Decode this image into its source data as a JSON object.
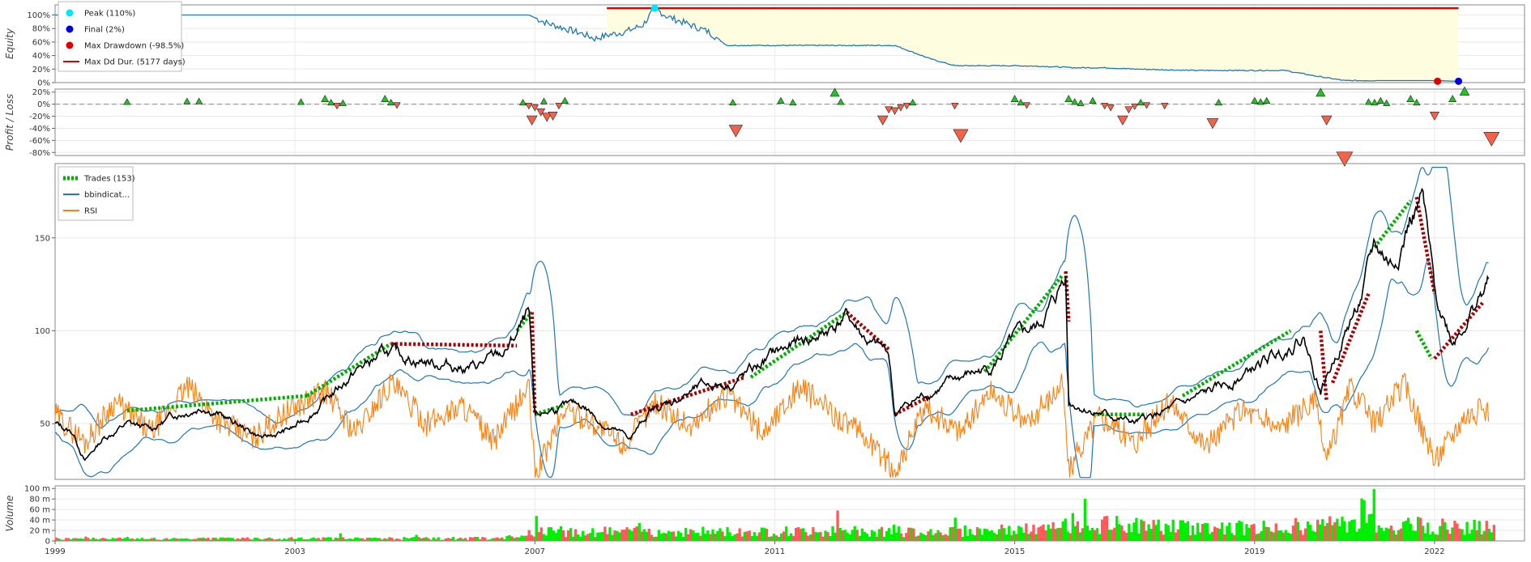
{
  "colors": {
    "equity": "#1f77b4",
    "equity_fill": "#fffde0",
    "peak": "#00e5ff",
    "final": "#0000dd",
    "maxdd": "#e00000",
    "ddline": "#e00000",
    "win": "#22c422",
    "loss": "#f2634a",
    "price": "#000000",
    "bb": "#1f77b4",
    "rsi": "#ff7f0e",
    "trade_win": "#00b000",
    "trade_loss": "#aa0000",
    "vol_up": "#00ee00",
    "vol_down": "#ff5a5a"
  },
  "chart_data": [
    {
      "type": "line",
      "panel": "equity",
      "ylabel": "Equity",
      "ylim": [
        0,
        115
      ],
      "yticks": [
        "0%",
        "20%",
        "40%",
        "60%",
        "80%",
        "100%"
      ],
      "ytick_values": [
        0,
        20,
        40,
        60,
        80,
        100
      ],
      "legend": [
        {
          "label": "Peak (110%)",
          "marker": "circle",
          "color": "peak"
        },
        {
          "label": "Final (2%)",
          "marker": "circle",
          "color": "final"
        },
        {
          "label": "Max Drawdown (-98.5%)",
          "marker": "circle",
          "color": "maxdd"
        },
        {
          "label": "Max Dd Dur. (5177 days)",
          "marker": "line",
          "color": "ddline"
        }
      ],
      "series": [
        {
          "x": [
            1999.0,
            2006.9,
            2007.2,
            2007.5,
            2007.8,
            2008.0,
            2008.2,
            2008.5,
            2008.8,
            2009.0,
            2009.2,
            2009.6,
            2009.9,
            2010.2,
            2010.5,
            2011.0,
            2011.5,
            2012.0,
            2012.5,
            2013.0,
            2013.3,
            2013.6,
            2014.0,
            2015.0,
            2015.5,
            2016.0,
            2016.5,
            2017.0,
            2018.0,
            2019.5,
            2020.0,
            2020.5,
            2021.5,
            2022.0,
            2022.4
          ],
          "y": [
            100,
            100,
            88,
            80,
            72,
            65,
            70,
            75,
            85,
            110,
            98,
            85,
            75,
            55,
            55,
            55,
            55,
            55,
            55,
            55,
            45,
            35,
            25,
            25,
            24,
            22,
            22,
            20,
            18,
            18,
            10,
            3,
            3,
            3,
            2
          ]
        }
      ],
      "peak": {
        "x": 2009.0,
        "y": 110
      },
      "final": {
        "x": 2022.4,
        "y": 2
      },
      "max_drawdown": {
        "x": 2022.05,
        "y": 2
      },
      "max_dd_duration": {
        "from": 2008.2,
        "to": 2022.4,
        "y": 110
      }
    },
    {
      "type": "scatter",
      "panel": "profit_loss",
      "ylabel": "Profit / Loss",
      "ylim": [
        -85,
        25
      ],
      "yticks": [
        "-80%",
        "-60%",
        "-40%",
        "-20%",
        "0%",
        "20%"
      ],
      "ytick_values": [
        -80,
        -60,
        -40,
        -20,
        0,
        20
      ],
      "points": [
        [
          2000.2,
          3
        ],
        [
          2001.2,
          4
        ],
        [
          2001.4,
          4
        ],
        [
          2003.1,
          3
        ],
        [
          2003.5,
          8
        ],
        [
          2003.6,
          2
        ],
        [
          2003.7,
          -2
        ],
        [
          2003.8,
          1
        ],
        [
          2004.5,
          8
        ],
        [
          2004.6,
          2
        ],
        [
          2004.7,
          -1
        ],
        [
          2006.8,
          2
        ],
        [
          2006.9,
          -2
        ],
        [
          2007.0,
          -5
        ],
        [
          2007.1,
          -12
        ],
        [
          2007.2,
          -20
        ],
        [
          2007.3,
          -18
        ],
        [
          2007.4,
          -2
        ],
        [
          2007.5,
          5
        ],
        [
          2006.95,
          -25
        ],
        [
          2007.15,
          4
        ],
        [
          2010.3,
          2
        ],
        [
          2010.35,
          -42
        ],
        [
          2011.1,
          5
        ],
        [
          2011.3,
          2
        ],
        [
          2012.0,
          18
        ],
        [
          2012.1,
          3
        ],
        [
          2012.8,
          -25
        ],
        [
          2012.9,
          -8
        ],
        [
          2013.0,
          -10
        ],
        [
          2013.1,
          -5
        ],
        [
          2013.2,
          -2
        ],
        [
          2013.3,
          2
        ],
        [
          2014.0,
          -2
        ],
        [
          2014.1,
          -50
        ],
        [
          2015.0,
          8
        ],
        [
          2015.1,
          2
        ],
        [
          2015.2,
          -1
        ],
        [
          2015.9,
          8
        ],
        [
          2016.0,
          3
        ],
        [
          2016.1,
          1
        ],
        [
          2016.3,
          5
        ],
        [
          2016.5,
          -2
        ],
        [
          2016.6,
          -5
        ],
        [
          2016.8,
          -25
        ],
        [
          2016.9,
          -8
        ],
        [
          2017.0,
          -3
        ],
        [
          2017.1,
          2
        ],
        [
          2017.2,
          -1
        ],
        [
          2017.5,
          -2
        ],
        [
          2018.3,
          -30
        ],
        [
          2018.4,
          2
        ],
        [
          2019.0,
          5
        ],
        [
          2019.1,
          3
        ],
        [
          2019.2,
          5
        ],
        [
          2020.1,
          18
        ],
        [
          2020.2,
          -25
        ],
        [
          2020.5,
          -88
        ],
        [
          2020.9,
          3
        ],
        [
          2021.0,
          2
        ],
        [
          2021.1,
          5
        ],
        [
          2021.2,
          1
        ],
        [
          2021.6,
          8
        ],
        [
          2021.7,
          2
        ],
        [
          2022.0,
          -18
        ],
        [
          2022.3,
          8
        ],
        [
          2022.5,
          20
        ],
        [
          2022.95,
          -55
        ]
      ]
    },
    {
      "type": "line",
      "panel": "price",
      "ylim": [
        20,
        190
      ],
      "yticks": [
        "50",
        "100",
        "150"
      ],
      "ytick_values": [
        50,
        100,
        150
      ],
      "legend": [
        {
          "label": "Trades (153)",
          "marker": "dashed",
          "color": "trade_win"
        },
        {
          "label": "bbindicat...",
          "marker": "line",
          "color": "bb"
        },
        {
          "label": "RSI",
          "marker": "line",
          "color": "rsi"
        }
      ],
      "price_anchors": {
        "x": [
          1999.0,
          1999.3,
          1999.5,
          1999.8,
          2000.2,
          2000.6,
          2001.0,
          2001.5,
          2002.0,
          2002.5,
          2003.0,
          2003.5,
          2004.0,
          2004.5,
          2005.0,
          2005.5,
          2006.0,
          2006.5,
          2006.9,
          2007.0,
          2007.3,
          2007.8,
          2008.2,
          2008.6,
          2008.9,
          2009.3,
          2009.8,
          2010.3,
          2010.7,
          2011.0,
          2011.4,
          2011.8,
          2012.2,
          2012.6,
          2012.9,
          2013.0,
          2013.3,
          2013.8,
          2014.2,
          2014.6,
          2015.0,
          2015.4,
          2015.7,
          2015.85,
          2015.9,
          2016.2,
          2016.6,
          2017.0,
          2017.4,
          2017.8,
          2018.2,
          2018.6,
          2019.0,
          2019.4,
          2019.8,
          2020.1,
          2020.2,
          2020.5,
          2020.8,
          2021.0,
          2021.3,
          2021.6,
          2021.8,
          2022.0,
          2022.3,
          2022.6,
          2022.9
        ],
        "y": [
          50,
          45,
          30,
          42,
          50,
          47,
          55,
          60,
          50,
          42,
          48,
          62,
          78,
          88,
          85,
          82,
          80,
          88,
          108,
          52,
          58,
          60,
          48,
          42,
          56,
          62,
          70,
          72,
          80,
          88,
          93,
          98,
          108,
          92,
          88,
          55,
          62,
          70,
          76,
          80,
          95,
          102,
          118,
          132,
          62,
          58,
          54,
          50,
          55,
          60,
          66,
          72,
          80,
          88,
          98,
          68,
          75,
          98,
          120,
          145,
          135,
          160,
          170,
          120,
          95,
          110,
          125
        ]
      },
      "rsi_anchors": {
        "x": [
          1999.0,
          1999.5,
          2000.0,
          2000.6,
          2001.2,
          2001.8,
          2002.3,
          2002.8,
          2003.5,
          2004.0,
          2004.6,
          2005.2,
          2005.8,
          2006.3,
          2006.9,
          2007.0,
          2007.5,
          2008.0,
          2008.5,
          2009.0,
          2009.6,
          2010.2,
          2010.8,
          2011.4,
          2012.0,
          2012.6,
          2013.0,
          2013.5,
          2014.1,
          2014.6,
          2015.2,
          2015.8,
          2015.9,
          2016.4,
          2017.0,
          2017.6,
          2018.2,
          2018.8,
          2019.4,
          2020.0,
          2020.2,
          2020.6,
          2021.0,
          2021.5,
          2022.0,
          2022.5,
          2022.9
        ],
        "y": [
          55,
          40,
          62,
          45,
          70,
          50,
          42,
          55,
          68,
          45,
          72,
          50,
          60,
          40,
          70,
          22,
          58,
          50,
          38,
          62,
          48,
          66,
          45,
          70,
          55,
          40,
          24,
          58,
          46,
          68,
          50,
          72,
          25,
          55,
          40,
          62,
          38,
          58,
          48,
          62,
          30,
          70,
          50,
          72,
          30,
          55,
          58
        ]
      },
      "trades": [
        {
          "x1": 2000.2,
          "y1": 57,
          "x2": 2003.2,
          "y2": 65,
          "win": true
        },
        {
          "x1": 2003.2,
          "y1": 65,
          "x2": 2004.6,
          "y2": 93,
          "win": true
        },
        {
          "x1": 2004.6,
          "y1": 93,
          "x2": 2006.7,
          "y2": 92,
          "win": false
        },
        {
          "x1": 2006.7,
          "y1": 100,
          "x2": 2006.95,
          "y2": 110,
          "win": true
        },
        {
          "x1": 2006.95,
          "y1": 110,
          "x2": 2007.0,
          "y2": 55,
          "win": false
        },
        {
          "x1": 2007.0,
          "y1": 55,
          "x2": 2007.5,
          "y2": 60,
          "win": true
        },
        {
          "x1": 2008.6,
          "y1": 55,
          "x2": 2010.5,
          "y2": 75,
          "win": false
        },
        {
          "x1": 2010.6,
          "y1": 75,
          "x2": 2012.2,
          "y2": 110,
          "win": true
        },
        {
          "x1": 2012.2,
          "y1": 110,
          "x2": 2012.9,
          "y2": 90,
          "win": false
        },
        {
          "x1": 2013.0,
          "y1": 55,
          "x2": 2013.6,
          "y2": 65,
          "win": false
        },
        {
          "x1": 2014.5,
          "y1": 78,
          "x2": 2015.8,
          "y2": 130,
          "win": true
        },
        {
          "x1": 2015.85,
          "y1": 132,
          "x2": 2015.9,
          "y2": 105,
          "win": false
        },
        {
          "x1": 2016.3,
          "y1": 55,
          "x2": 2017.2,
          "y2": 55,
          "win": true
        },
        {
          "x1": 2017.8,
          "y1": 65,
          "x2": 2019.6,
          "y2": 100,
          "win": true
        },
        {
          "x1": 2020.1,
          "y1": 100,
          "x2": 2020.2,
          "y2": 62,
          "win": false
        },
        {
          "x1": 2020.3,
          "y1": 72,
          "x2": 2020.9,
          "y2": 120,
          "win": false
        },
        {
          "x1": 2021.0,
          "y1": 145,
          "x2": 2021.6,
          "y2": 170,
          "win": true
        },
        {
          "x1": 2021.7,
          "y1": 172,
          "x2": 2022.0,
          "y2": 120,
          "win": false
        },
        {
          "x1": 2021.7,
          "y1": 100,
          "x2": 2021.95,
          "y2": 85,
          "win": true
        },
        {
          "x1": 2022.0,
          "y1": 85,
          "x2": 2022.8,
          "y2": 115,
          "win": false
        }
      ]
    },
    {
      "type": "bar",
      "panel": "volume",
      "ylabel": "Volume",
      "ylim": [
        0,
        105
      ],
      "yticks": [
        "0",
        "20 m",
        "40 m",
        "60 m",
        "80 m",
        "100 m"
      ],
      "ytick_values": [
        0,
        20,
        40,
        60,
        80,
        100
      ],
      "level_anchors": {
        "x": [
          1999.0,
          2006.5,
          2007.0,
          2010.0,
          2012.0,
          2014.0,
          2015.6,
          2016.0,
          2017.0,
          2019.0,
          2020.0,
          2021.0,
          2022.0,
          2023.0
        ],
        "y": [
          4,
          5,
          18,
          17,
          18,
          18,
          22,
          35,
          28,
          24,
          30,
          32,
          28,
          25
        ]
      }
    }
  ],
  "x_axis": {
    "min": 1999.0,
    "max": 2023.5,
    "ticks": [
      "1999",
      "2003",
      "2007",
      "2011",
      "2015",
      "2019",
      "2022"
    ],
    "tick_values": [
      1999.0,
      2003.0,
      2007.0,
      2011.0,
      2015.0,
      2019.0,
      2022.0
    ]
  }
}
